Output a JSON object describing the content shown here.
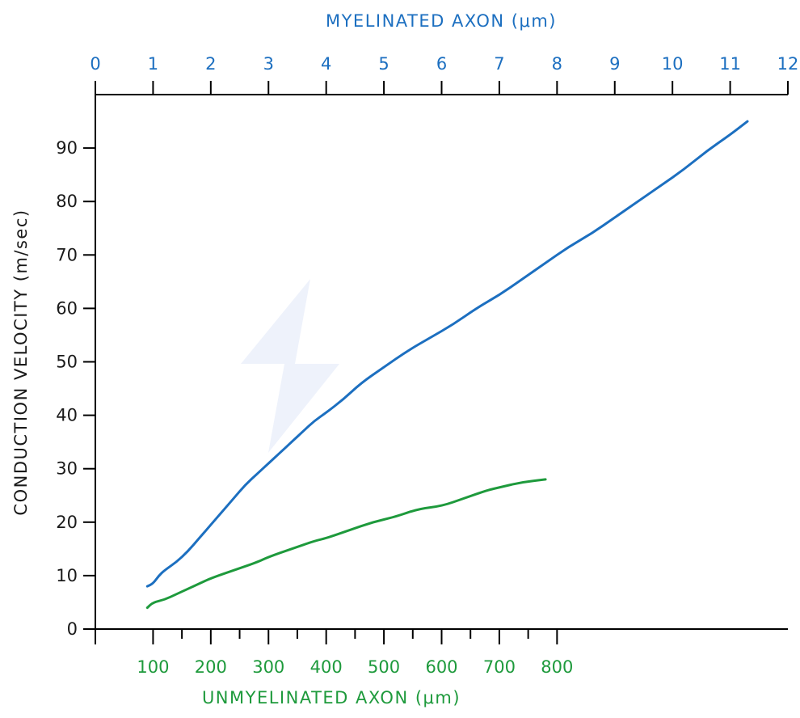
{
  "chart_data": {
    "type": "line",
    "title": "",
    "top_axis": {
      "label": "MYELINATED AXON (μm)",
      "min": 0,
      "max": 12,
      "ticks": [
        0,
        1,
        2,
        3,
        4,
        5,
        6,
        7,
        8,
        9,
        10,
        11,
        12
      ],
      "tick_labels": [
        "0",
        "1",
        "2",
        "3",
        "4",
        "5",
        "6",
        "7",
        "8",
        "9",
        "10",
        "11",
        "12"
      ]
    },
    "bottom_axis": {
      "label": "UNMYELINATED AXON (μm)",
      "min": 0,
      "max": 1200,
      "ticks": [
        100,
        200,
        300,
        400,
        500,
        600,
        700,
        800
      ],
      "tick_labels": [
        "100",
        "200",
        "300",
        "400",
        "500",
        "600",
        "700",
        "800"
      ]
    },
    "y_axis": {
      "label": "CONDUCTION VELOCITY (m/sec)",
      "min": 0,
      "max": 100,
      "ticks": [
        0,
        10,
        20,
        30,
        40,
        50,
        60,
        70,
        80,
        90
      ],
      "tick_labels": [
        "0",
        "10",
        "20",
        "30",
        "40",
        "50",
        "60",
        "70",
        "80",
        "90"
      ]
    },
    "grid": false,
    "legend": "none",
    "series": [
      {
        "axis": "top",
        "color": "#1c6fc0",
        "x": [
          0.9,
          1.0,
          1.1,
          1.2,
          1.4,
          1.6,
          1.8,
          2.0,
          2.2,
          2.4,
          2.6,
          2.8,
          3.0,
          3.2,
          3.4,
          3.6,
          3.8,
          4.0,
          4.3,
          4.6,
          5.0,
          5.4,
          5.8,
          6.2,
          6.6,
          7.0,
          7.4,
          7.8,
          8.2,
          8.6,
          9.0,
          9.4,
          9.8,
          10.2,
          10.6,
          11.0,
          11.3
        ],
        "y": [
          8,
          8.5,
          10,
          11,
          12.5,
          14.5,
          17,
          19.5,
          22,
          24.5,
          27,
          29,
          31,
          33,
          35,
          37,
          39,
          40.5,
          43,
          46,
          49,
          52,
          54.5,
          57,
          60,
          62.5,
          65.5,
          68.5,
          71.5,
          74,
          77,
          80,
          83,
          86,
          89.5,
          92.5,
          95
        ]
      },
      {
        "axis": "bottom",
        "color": "#1e9a3c",
        "x": [
          90,
          100,
          120,
          140,
          160,
          180,
          200,
          240,
          280,
          300,
          340,
          380,
          400,
          440,
          480,
          520,
          560,
          600,
          640,
          680,
          700,
          740,
          780
        ],
        "y": [
          4,
          5,
          5.5,
          6.5,
          7.5,
          8.5,
          9.5,
          11,
          12.5,
          13.5,
          15,
          16.5,
          17,
          18.5,
          20,
          21,
          22.5,
          23,
          24.5,
          26,
          26.5,
          27.5,
          28
        ]
      }
    ]
  }
}
